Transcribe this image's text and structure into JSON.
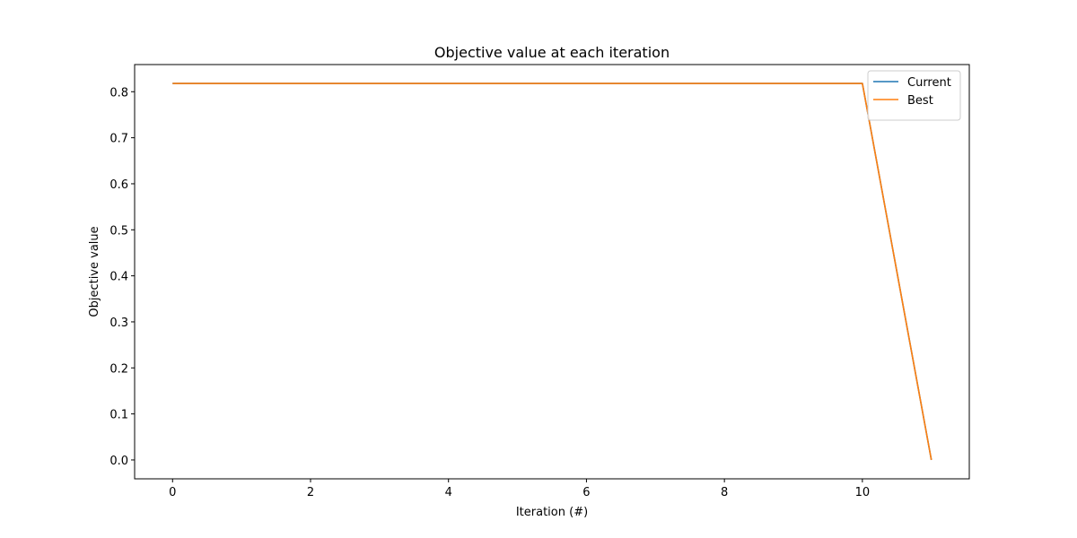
{
  "chart_data": {
    "type": "line",
    "title": "Objective value at each iteration",
    "xlabel": "Iteration (#)",
    "ylabel": "Objective value",
    "xlim": [
      -0.55,
      11.55
    ],
    "ylim": [
      -0.041,
      0.859
    ],
    "xticks": [
      0,
      2,
      4,
      6,
      8,
      10
    ],
    "yticks": [
      0.0,
      0.1,
      0.2,
      0.3,
      0.4,
      0.5,
      0.6,
      0.7,
      0.8
    ],
    "xtick_labels": [
      "0",
      "2",
      "4",
      "6",
      "8",
      "10"
    ],
    "ytick_labels": [
      "0.0",
      "0.1",
      "0.2",
      "0.3",
      "0.4",
      "0.5",
      "0.6",
      "0.7",
      "0.8"
    ],
    "grid": false,
    "legend_position": "top-right",
    "x": [
      0,
      1,
      2,
      3,
      4,
      5,
      6,
      7,
      8,
      9,
      10,
      11
    ],
    "series": [
      {
        "name": "Current",
        "color": "#1f77b4",
        "values": [
          0.818,
          0.818,
          0.818,
          0.818,
          0.818,
          0.818,
          0.818,
          0.818,
          0.818,
          0.818,
          0.818,
          0.0
        ]
      },
      {
        "name": "Best",
        "color": "#ff7f0e",
        "values": [
          0.818,
          0.818,
          0.818,
          0.818,
          0.818,
          0.818,
          0.818,
          0.818,
          0.818,
          0.818,
          0.818,
          0.0
        ]
      }
    ]
  }
}
